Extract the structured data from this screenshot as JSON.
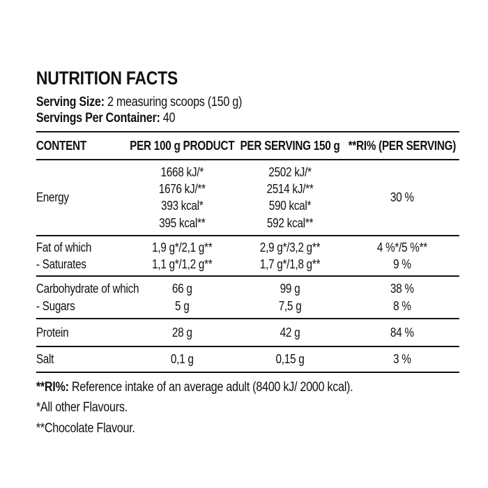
{
  "page": {
    "background": "#ffffff",
    "text_color": "#111111"
  },
  "header": {
    "title": "NUTRITION FACTS",
    "serving_size_label": "Serving Size:",
    "serving_size_value": "2 measuring scoops (150 g)",
    "servings_per_container_label": "Servings Per Container:",
    "servings_per_container_value": "40"
  },
  "table": {
    "columns": [
      "CONTENT",
      "PER 100 g PRODUCT",
      "PER SERVING 150 g",
      "**RI% (PER SERVING)"
    ],
    "rows": [
      {
        "name": "energy",
        "labels": [
          "Energy"
        ],
        "per100": [
          "1668 kJ/*",
          "1676 kJ/**",
          "393 kcal*",
          "395 kcal**"
        ],
        "per_serving": [
          "2502 kJ/*",
          "2514 kJ/**",
          "590 kcal*",
          "592 kcal**"
        ],
        "ri": [
          "30 %"
        ]
      },
      {
        "name": "fat",
        "labels": [
          "Fat of which",
          "- Saturates"
        ],
        "per100": [
          "1,9 g*/2,1 g**",
          "1,1 g*/1,2 g**"
        ],
        "per_serving": [
          "2,9 g*/3,2 g**",
          "1,7 g*/1,8 g**"
        ],
        "ri": [
          "4 %*/5 %**",
          "9 %"
        ]
      },
      {
        "name": "carbohydrate",
        "labels": [
          "Carbohydrate of which",
          "- Sugars"
        ],
        "per100": [
          "66 g",
          "5 g"
        ],
        "per_serving": [
          "99 g",
          "7,5 g"
        ],
        "ri": [
          "38 %",
          "8 %"
        ]
      },
      {
        "name": "protein",
        "labels": [
          "Protein"
        ],
        "per100": [
          "28 g"
        ],
        "per_serving": [
          "42 g"
        ],
        "ri": [
          "84 %"
        ]
      },
      {
        "name": "salt",
        "labels": [
          "Salt"
        ],
        "per100": [
          "0,1 g"
        ],
        "per_serving": [
          "0,15 g"
        ],
        "ri": [
          "3 %"
        ]
      }
    ]
  },
  "footnotes": {
    "ri_label": "**RI%:",
    "ri_text": " Reference intake of an average adult (8400 kJ/ 2000 kcal).",
    "note_all_other": "*All other Flavours.",
    "note_chocolate": "**Chocolate Flavour."
  }
}
